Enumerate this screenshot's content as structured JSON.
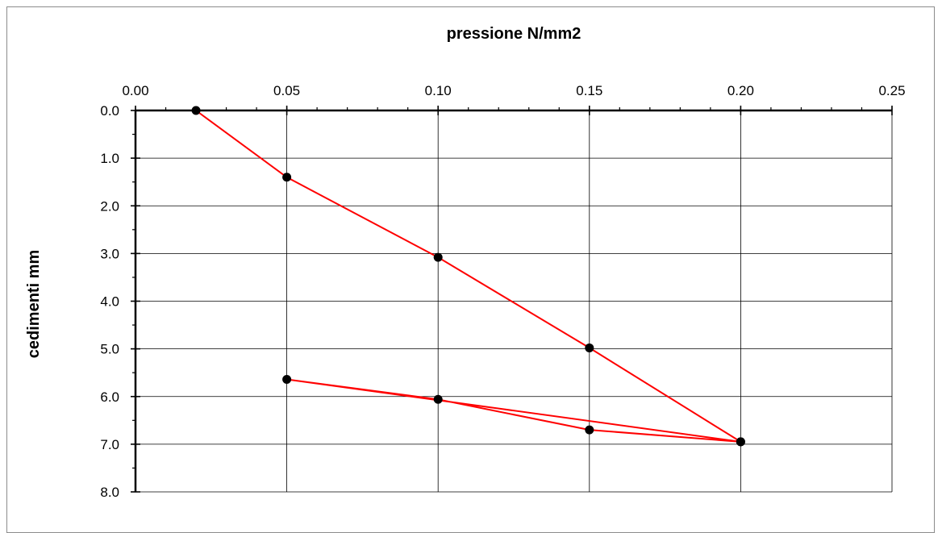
{
  "chart_data": {
    "type": "scatter",
    "title": "",
    "xlabel": "pressione N/mm2",
    "ylabel": "cedimenti mm",
    "x_axis_position": "top",
    "y_axis_inverted": true,
    "xlim": [
      0.0,
      0.25
    ],
    "ylim": [
      0.0,
      8.0
    ],
    "x_ticks": [
      "0.00",
      "0.05",
      "0.10",
      "0.15",
      "0.20",
      "0.25"
    ],
    "y_ticks": [
      "0.0",
      "1.0",
      "2.0",
      "3.0",
      "4.0",
      "5.0",
      "6.0",
      "7.0",
      "8.0"
    ],
    "grid": true,
    "legend": "none",
    "series": [
      {
        "line_color": "#ff0000",
        "marker_color": "#000000",
        "points": [
          {
            "x": 0.02,
            "y": 0.0
          },
          {
            "x": 0.05,
            "y": 1.4
          },
          {
            "x": 0.1,
            "y": 3.08
          },
          {
            "x": 0.15,
            "y": 4.98
          },
          {
            "x": 0.2,
            "y": 6.95
          },
          {
            "x": 0.15,
            "y": 6.7
          },
          {
            "x": 0.1,
            "y": 6.06
          },
          {
            "x": 0.05,
            "y": 5.64
          },
          {
            "x": 0.2,
            "y": 6.95
          }
        ]
      }
    ]
  }
}
